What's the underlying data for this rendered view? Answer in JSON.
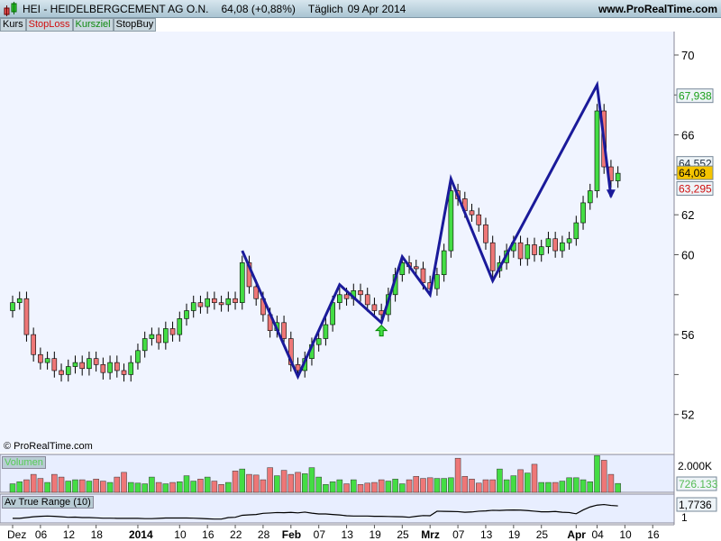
{
  "header": {
    "symbol": "HEI - HEIDELBERGCEMENT AG O.N.",
    "price": "64,08 (+0,88%)",
    "period": "Täglich",
    "date": "09 Apr 2014",
    "url": "www.ProRealTime.com"
  },
  "tabs": [
    {
      "label": "Kurs",
      "color": "#000000"
    },
    {
      "label": "StopLoss",
      "color": "#d01010"
    },
    {
      "label": "Kursziel",
      "color": "#108a10"
    },
    {
      "label": "StopBuy",
      "color": "#000000"
    }
  ],
  "copyright": "© ProRealTime.com",
  "chart_data": {
    "type": "candlestick",
    "ylim": [
      50.5,
      72.5
    ],
    "yticks": [
      "52",
      "54",
      "56",
      "58",
      "60",
      "62",
      "64",
      "66",
      "68",
      "70"
    ],
    "ytick_values": [
      52,
      54,
      56,
      58,
      60,
      62,
      64,
      66,
      68,
      70
    ],
    "labeled_ytick_values": [
      52,
      56,
      60,
      62,
      66,
      70
    ],
    "xticks": [
      {
        "label": "Dez",
        "i": 0
      },
      {
        "label": "06",
        "i": 4
      },
      {
        "label": "12",
        "i": 8
      },
      {
        "label": "18",
        "i": 12
      },
      {
        "label": "2014",
        "i": 18,
        "bold": true
      },
      {
        "label": "10",
        "i": 24
      },
      {
        "label": "16",
        "i": 28
      },
      {
        "label": "22",
        "i": 32
      },
      {
        "label": "28",
        "i": 36
      },
      {
        "label": "Feb",
        "i": 40,
        "bold": true
      },
      {
        "label": "07",
        "i": 44
      },
      {
        "label": "13",
        "i": 48
      },
      {
        "label": "19",
        "i": 52
      },
      {
        "label": "25",
        "i": 56
      },
      {
        "label": "Mrz",
        "i": 60,
        "bold": true
      },
      {
        "label": "07",
        "i": 64
      },
      {
        "label": "13",
        "i": 68
      },
      {
        "label": "19",
        "i": 72
      },
      {
        "label": "25",
        "i": 76
      },
      {
        "label": "Apr",
        "i": 81,
        "bold": true
      },
      {
        "label": "04",
        "i": 84
      },
      {
        "label": "10",
        "i": 88
      },
      {
        "label": "16",
        "i": 92
      }
    ],
    "closes": [
      57.6,
      57.8,
      56.0,
      55.0,
      54.6,
      54.8,
      54.2,
      54.0,
      54.4,
      54.6,
      54.3,
      54.8,
      54.5,
      54.1,
      54.6,
      54.2,
      54.0,
      54.6,
      55.2,
      55.8,
      56.0,
      55.6,
      56.3,
      56.0,
      56.8,
      57.2,
      57.6,
      57.4,
      57.8,
      57.6,
      57.5,
      57.8,
      57.6,
      59.6,
      58.4,
      57.8,
      57.0,
      56.2,
      56.6,
      55.8,
      54.5,
      54.2,
      54.8,
      55.5,
      55.8,
      56.5,
      57.6,
      58.0,
      57.8,
      58.2,
      58.0,
      57.5,
      57.2,
      57.0,
      58.0,
      59.0,
      59.6,
      59.4,
      59.3,
      58.6,
      58.3,
      59.0,
      60.2,
      63.2,
      62.8,
      62.2,
      62.0,
      61.5,
      60.6,
      59.2,
      59.6,
      60.2,
      60.6,
      59.8,
      60.5,
      60.0,
      60.4,
      60.8,
      60.2,
      60.6,
      60.8,
      61.6,
      62.6,
      63.2,
      67.2,
      64.4,
      63.7,
      64.08
    ],
    "first_open": 57.2,
    "zigzag": [
      [
        33,
        60.2
      ],
      [
        41,
        53.9
      ],
      [
        47,
        58.5
      ],
      [
        53,
        56.6
      ],
      [
        56,
        59.9
      ],
      [
        60,
        58.0
      ],
      [
        63,
        63.8
      ],
      [
        69,
        58.7
      ],
      [
        84,
        68.5
      ],
      [
        86,
        62.9
      ]
    ],
    "buy_signal": {
      "i": 53,
      "price": 56.2
    },
    "price_labels": [
      {
        "value": "67,938",
        "v": 67.938,
        "color": "#1aa01a",
        "bg": "#eef4f8"
      },
      {
        "value": "64,552",
        "v": 64.552,
        "color": "#203040",
        "bg": "#eef4f8"
      },
      {
        "value": "64,08",
        "v": 64.08,
        "color": "#000000",
        "bg": "#f5c400"
      },
      {
        "value": "63,295",
        "v": 63.295,
        "color": "#d01010",
        "bg": "#eef4f8"
      }
    ],
    "volume": {
      "label": "Volumen",
      "max_label": "2.000K",
      "last_label": "726.133",
      "values": [
        700,
        850,
        1000,
        1400,
        1100,
        800,
        1400,
        1200,
        900,
        1000,
        1000,
        900,
        1050,
        900,
        800,
        1200,
        1550,
        800,
        750,
        700,
        1200,
        800,
        700,
        800,
        850,
        1300,
        900,
        1050,
        1200,
        900,
        650,
        800,
        1650,
        1800,
        1400,
        1350,
        1000,
        1900,
        1300,
        1700,
        1400,
        1550,
        1450,
        1900,
        1200,
        650,
        850,
        1000,
        700,
        1000,
        650,
        750,
        800,
        1000,
        900,
        1050,
        700,
        1000,
        1250,
        1100,
        1150,
        1100,
        1100,
        1150,
        2600,
        1250,
        1050,
        750,
        1000,
        1000,
        1800,
        1000,
        1300,
        1750,
        1500,
        2150,
        800,
        800,
        800,
        900,
        1150,
        1150,
        1000,
        850,
        2800,
        2450,
        1400,
        726
      ]
    },
    "atr": {
      "label": "Av True Range (10)",
      "last_label": "1,7736",
      "tick": "1",
      "values": [
        0.95,
        0.95,
        1.0,
        1.05,
        1.08,
        1.1,
        1.08,
        1.05,
        1.02,
        1.03,
        1.0,
        1.0,
        0.98,
        0.96,
        0.96,
        0.95,
        0.95,
        0.95,
        0.95,
        0.93,
        0.93,
        0.95,
        0.97,
        0.97,
        0.97,
        0.97,
        0.96,
        0.94,
        0.92,
        0.9,
        0.9,
        1.0,
        1.02,
        1.15,
        1.18,
        1.2,
        1.28,
        1.3,
        1.33,
        1.32,
        1.34,
        1.31,
        1.36,
        1.29,
        1.24,
        1.24,
        1.2,
        1.17,
        1.12,
        1.1,
        1.1,
        1.1,
        1.08,
        1.08,
        1.07,
        1.06,
        1.05,
        1.02,
        1.08,
        1.13,
        1.12,
        1.42,
        1.41,
        1.4,
        1.39,
        1.35,
        1.37,
        1.42,
        1.44,
        1.48,
        1.47,
        1.49,
        1.5,
        1.49,
        1.46,
        1.42,
        1.38,
        1.38,
        1.4,
        1.35,
        1.33,
        1.25,
        1.5,
        1.7,
        1.82,
        1.86,
        1.8,
        1.77
      ]
    }
  },
  "colors": {
    "up": "#44dd44",
    "down": "#ee7777",
    "zigzag": "#1a1a9a",
    "pane_bg": "#e8eeff",
    "header_bg": "#b8d0dc"
  }
}
